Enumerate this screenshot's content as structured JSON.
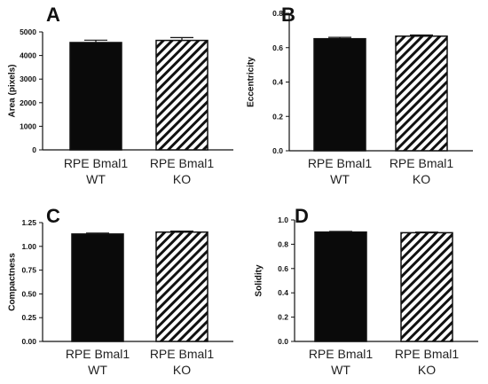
{
  "chart_data": [
    {
      "type": "bar",
      "panel": "A",
      "ylabel": "Area (pixels)",
      "ylim": [
        0,
        5000
      ],
      "yticks": [
        "0",
        "1000",
        "2000",
        "3000",
        "4000",
        "5000"
      ],
      "categories": [
        [
          "RPE Bmal1",
          "WT"
        ],
        [
          "RPE Bmal1",
          "KO"
        ]
      ],
      "values": [
        4550,
        4640
      ],
      "errors": [
        100,
        120
      ],
      "styles": [
        "solid",
        "hatched"
      ]
    },
    {
      "type": "bar",
      "panel": "B",
      "ylabel": "Eccentricity",
      "ylim": [
        0,
        0.8
      ],
      "yticks": [
        "0.0",
        "0.2",
        "0.4",
        "0.6",
        "0.8"
      ],
      "categories": [
        [
          "RPE Bmal1",
          "WT"
        ],
        [
          "RPE Bmal1",
          "KO"
        ]
      ],
      "values": [
        0.652,
        0.667
      ],
      "errors": [
        0.008,
        0.007
      ],
      "styles": [
        "solid",
        "hatched"
      ]
    },
    {
      "type": "bar",
      "panel": "C",
      "ylabel": "Compactness",
      "ylim": [
        0,
        1.25
      ],
      "yticks": [
        "0.00",
        "0.25",
        "0.50",
        "0.75",
        "1.00",
        "1.25"
      ],
      "categories": [
        [
          "RPE Bmal1",
          "WT"
        ],
        [
          "RPE Bmal1",
          "KO"
        ]
      ],
      "values": [
        1.13,
        1.15
      ],
      "errors": [
        0.01,
        0.01
      ],
      "styles": [
        "solid",
        "hatched"
      ]
    },
    {
      "type": "bar",
      "panel": "D",
      "ylabel": "Solidity",
      "ylim": [
        0,
        1.0
      ],
      "yticks": [
        "0.0",
        "0.2",
        "0.4",
        "0.6",
        "0.8",
        "1.0"
      ],
      "categories": [
        [
          "RPE Bmal1",
          "WT"
        ],
        [
          "RPE Bmal1",
          "KO"
        ]
      ],
      "values": [
        0.9,
        0.895
      ],
      "errors": [
        0.005,
        0.005
      ],
      "styles": [
        "solid",
        "hatched"
      ]
    }
  ]
}
